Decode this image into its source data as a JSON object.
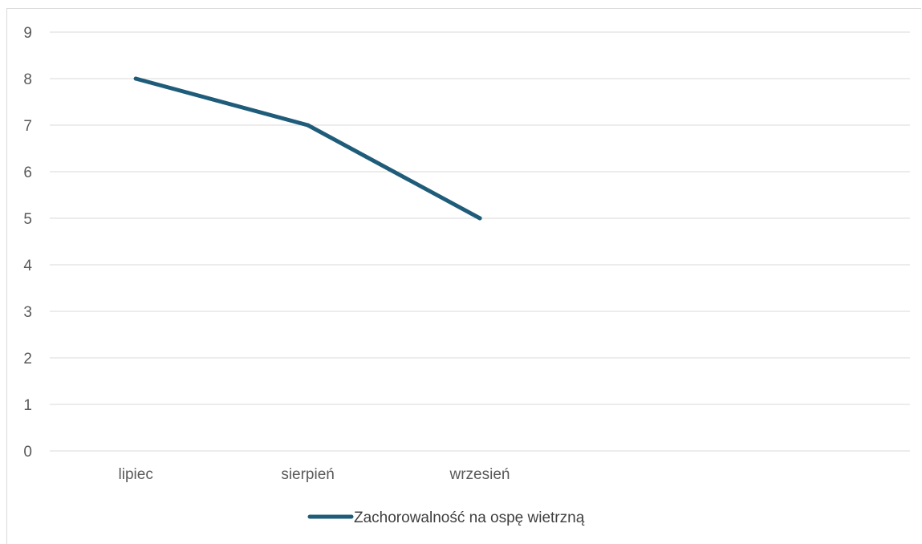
{
  "chart_data": {
    "type": "line",
    "title": "",
    "xlabel": "",
    "ylabel": "",
    "categories": [
      "lipiec",
      "sierpień",
      "wrzesień",
      "",
      ""
    ],
    "series": [
      {
        "name": "Zachorowalność na ospę wietrzną",
        "values": [
          8,
          7,
          5,
          null,
          null
        ],
        "color": "#1f5c7a"
      }
    ],
    "ylim": [
      0,
      9
    ],
    "yticks": [
      "0",
      "1",
      "2",
      "3",
      "4",
      "5",
      "6",
      "7",
      "8",
      "9"
    ],
    "grid": true,
    "legend_position": "bottom"
  }
}
